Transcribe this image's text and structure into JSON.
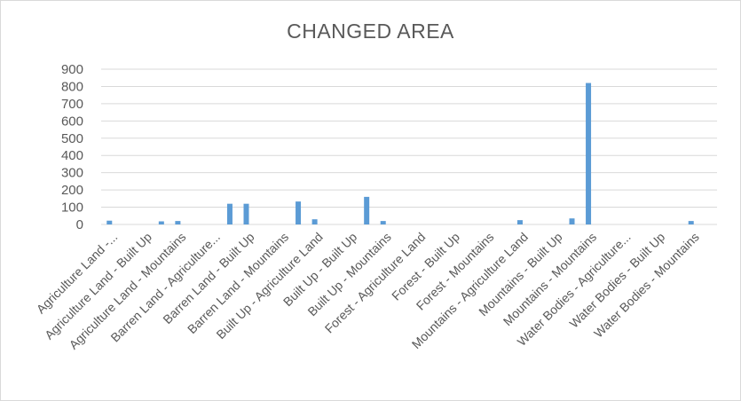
{
  "chart_data": {
    "type": "bar",
    "title": "CHANGED AREA",
    "xlabel": "",
    "ylabel": "",
    "ylim": [
      0,
      900
    ],
    "yticks": [
      0,
      100,
      200,
      300,
      400,
      500,
      600,
      700,
      800,
      900
    ],
    "grid": true,
    "legend": "none",
    "bar_color": "#5b9bd5",
    "categories": [
      "Agriculture Land -...",
      "Agriculture Land - Built Up",
      "Agriculture Land - Mountains",
      "Barren Land - Agriculture...",
      "Barren Land - Built Up",
      "Barren Land - Mountains",
      "Built Up - Agriculture Land",
      "Built Up - Built Up",
      "Built Up - Mountains",
      "Forest - Agriculture Land",
      "Forest - Built Up",
      "Forest - Mountains",
      "Mountains - Agriculture Land",
      "Mountains - Built Up",
      "Mountains - Mountains",
      "Water Bodies - Agriculture...",
      "Water Bodies - Built Up",
      "Water Bodies - Mountains"
    ],
    "series": [
      {
        "values": [
          22,
          0,
          20,
          0,
          120,
          0,
          30,
          0,
          20,
          0,
          0,
          0,
          25,
          0,
          820,
          0,
          0,
          20
        ]
      },
      {
        "values": [
          0,
          18,
          0,
          120,
          0,
          133,
          0,
          160,
          0,
          0,
          0,
          0,
          0,
          35,
          0,
          0,
          0,
          0
        ]
      }
    ]
  }
}
